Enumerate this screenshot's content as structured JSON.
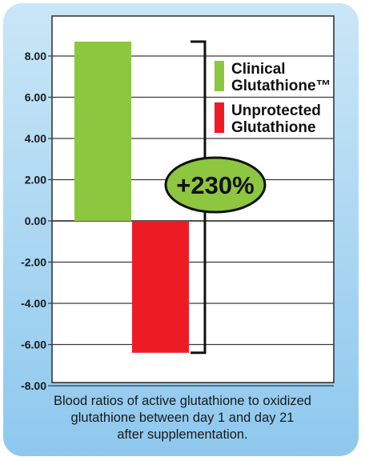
{
  "chart_data": {
    "type": "bar",
    "categories": [
      "Clinical Glutathione™",
      "Unprotected Glutathione"
    ],
    "series": [
      {
        "name": "Clinical Glutathione™",
        "values": [
          8.7,
          null
        ],
        "color": "#8dc63f"
      },
      {
        "name": "Unprotected Glutathione",
        "values": [
          null,
          -6.4
        ],
        "color": "#ed1c24"
      }
    ],
    "ylim": [
      -8,
      9
    ],
    "yticks": [
      "8.00",
      "6.00",
      "4.00",
      "2.00",
      "0.00",
      "-2.00",
      "-4.00",
      "-6.00",
      "-8.00"
    ],
    "ytick_values": [
      8,
      6,
      4,
      2,
      0,
      -2,
      -4,
      -6,
      -8
    ],
    "grid": true,
    "legend_position": "upper-right",
    "legend": [
      {
        "line1": "Clinical",
        "line2": "Glutathione™",
        "color": "#8dc63f"
      },
      {
        "line1": "Unprotected",
        "line2": "Glutathione",
        "color": "#ed1c24"
      }
    ],
    "annotation": {
      "text": "+230%",
      "fill": "#8dc63f"
    },
    "caption": [
      "Blood ratios of active glutathione to oxidized",
      "glutathione between day 1 and day 21",
      "after supplementation."
    ]
  }
}
